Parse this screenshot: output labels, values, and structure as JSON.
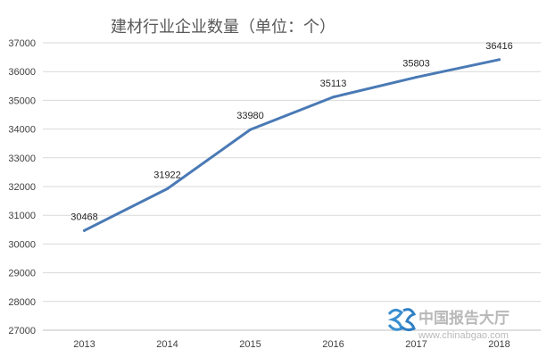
{
  "chart_data": {
    "type": "line",
    "title": "建材行业企业数量（单位：个）",
    "categories": [
      "2013",
      "2014",
      "2015",
      "2016",
      "2017",
      "2018"
    ],
    "series": [
      {
        "values": [
          30468,
          31922,
          33980,
          35113,
          35803,
          36416
        ]
      }
    ],
    "ylim": [
      27000,
      37000
    ],
    "yticks": [
      27000,
      28000,
      29000,
      30000,
      31000,
      32000,
      33000,
      34000,
      35000,
      36000,
      37000
    ],
    "grid": true,
    "legend": "none",
    "line_color": "#4a7ab5"
  },
  "watermark": {
    "cn_text": "中国报告大厅",
    "url": "www.chinabgao.com"
  }
}
